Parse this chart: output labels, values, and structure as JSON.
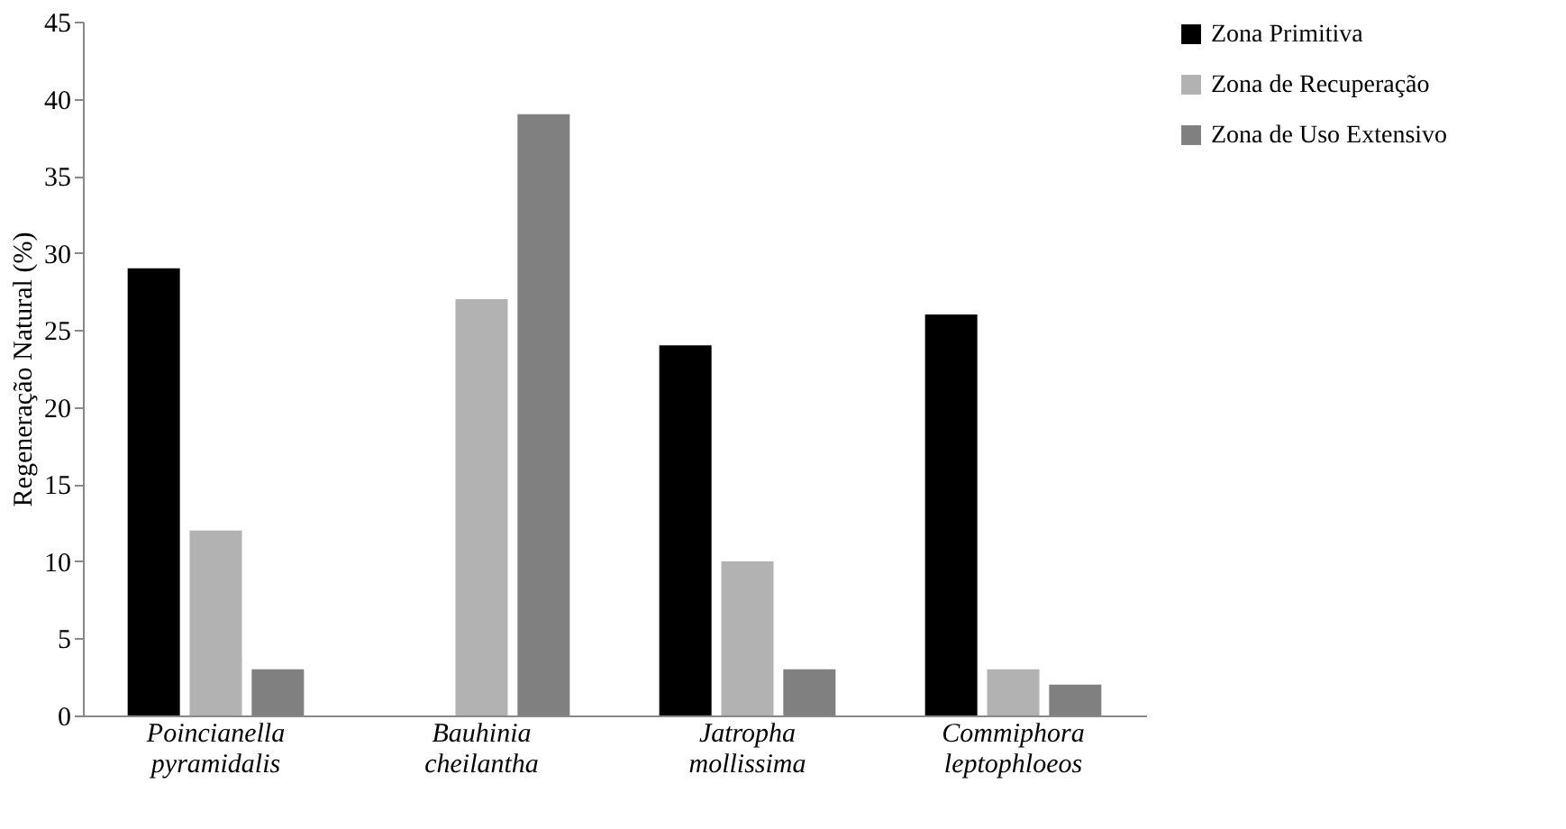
{
  "chart_data": {
    "type": "bar",
    "ylabel": "Regeneração Natural (%)",
    "categories": [
      "Poincianella pyramidalis",
      "Bauhinia cheilantha",
      "Jatropha mollissima",
      "Commiphora leptophloeos"
    ],
    "series": [
      {
        "name": "Zona Primitiva",
        "color": "#000000",
        "values": [
          29,
          null,
          24,
          26
        ]
      },
      {
        "name": "Zona de Recuperação",
        "color": "#b2b2b2",
        "values": [
          12,
          27,
          10,
          3
        ]
      },
      {
        "name": "Zona de Uso Extensivo",
        "color": "#808080",
        "values": [
          3,
          39,
          3,
          2
        ]
      }
    ],
    "ylim": [
      0,
      45
    ],
    "yticks": [
      0,
      5,
      10,
      15,
      20,
      25,
      30,
      35,
      40,
      45
    ],
    "grid": false,
    "legend": "right"
  }
}
